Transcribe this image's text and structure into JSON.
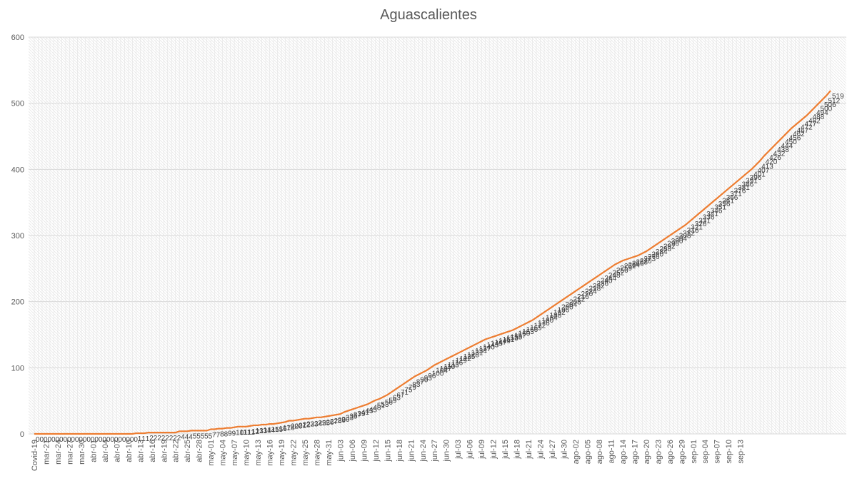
{
  "chart_data": {
    "type": "line",
    "title": "Aguascalientes",
    "xlabel": "",
    "ylabel": "",
    "ylim": [
      0,
      600
    ],
    "yticks": [
      0,
      100,
      200,
      300,
      400,
      500,
      600
    ],
    "grid": true,
    "legend": "none",
    "x_start_label": "Covid-19",
    "x_start_date": "2020-03-18",
    "x_tick_labels": [
      "Covid-19",
      "mar-21",
      "mar-24",
      "mar-27",
      "mar-30",
      "abr-01",
      "abr-04",
      "abr-07",
      "abr-10",
      "abr-13",
      "abr-16",
      "abr-19",
      "abr-22",
      "abr-25",
      "abr-28",
      "may-01",
      "may-04",
      "may-07",
      "may-10",
      "may-13",
      "may-16",
      "may-19",
      "may-22",
      "may-25",
      "may-28",
      "may-31",
      "jun-03",
      "jun-06",
      "jun-09",
      "jun-12",
      "jun-15",
      "jun-18",
      "jun-21",
      "jun-24",
      "jun-27",
      "jun-30",
      "jul-03",
      "jul-06",
      "jul-09",
      "jul-12",
      "jul-15",
      "jul-18",
      "jul-21",
      "jul-24",
      "jul-27",
      "jul-30",
      "ago-02",
      "ago-05",
      "ago-08",
      "ago-11",
      "ago-14",
      "ago-17",
      "ago-20",
      "ago-23",
      "ago-26",
      "ago-29",
      "sep-01",
      "sep-04",
      "sep-07",
      "sep-10",
      "sep-13"
    ],
    "series_colors": [
      "#ED7D31"
    ],
    "series": [
      {
        "values": [
          0,
          0,
          0,
          0,
          0,
          0,
          0,
          0,
          0,
          0,
          0,
          0,
          0,
          0,
          0,
          0,
          0,
          0,
          0,
          0,
          0,
          0,
          0,
          0,
          0,
          0,
          1,
          1,
          1,
          2,
          2,
          2,
          2,
          2,
          2,
          2,
          2,
          4,
          4,
          4,
          5,
          5,
          5,
          5,
          5,
          7,
          7,
          8,
          8,
          9,
          9,
          10,
          11,
          11,
          11,
          12,
          13,
          13,
          14,
          14,
          15,
          15,
          16,
          17,
          18,
          20,
          20,
          21,
          22,
          23,
          23,
          24,
          25,
          25,
          26,
          27,
          28,
          29,
          30,
          33,
          35,
          37,
          39,
          41,
          43,
          45,
          48,
          51,
          53,
          56,
          59,
          63,
          67,
          71,
          75,
          79,
          83,
          87,
          90,
          93,
          96,
          100,
          104,
          107,
          110,
          113,
          116,
          119,
          122,
          125,
          128,
          131,
          134,
          137,
          140,
          143,
          145,
          147,
          149,
          151,
          153,
          155,
          157,
          160,
          163,
          166,
          169,
          172,
          176,
          180,
          184,
          188,
          192,
          196,
          200,
          204,
          208,
          212,
          216,
          220,
          224,
          228,
          232,
          236,
          240,
          244,
          248,
          252,
          256,
          259,
          262,
          264,
          266,
          268,
          270,
          273,
          276,
          280,
          284,
          288,
          292,
          296,
          300,
          304,
          308,
          312,
          316,
          321,
          326,
          331,
          336,
          341,
          346,
          351,
          356,
          361,
          366,
          371,
          376,
          381,
          386,
          391,
          396,
          401,
          407,
          413,
          420,
          426,
          432,
          438,
          444,
          450,
          456,
          462,
          467,
          472,
          477,
          482,
          488,
          494,
          500,
          506,
          512,
          519
        ]
      }
    ],
    "data_labels_last": "519"
  }
}
